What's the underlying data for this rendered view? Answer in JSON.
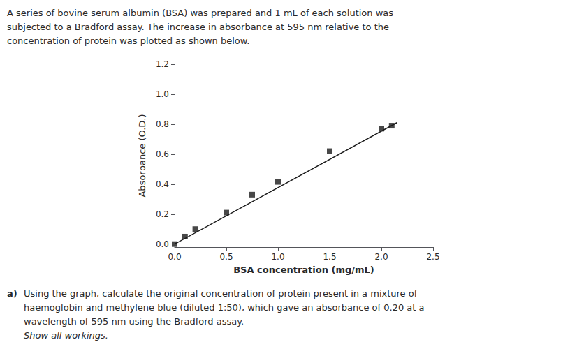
{
  "chart_data": {
    "type": "scatter",
    "annotations": [
      "A series of bovine serum albumin (BSA) was prepared and 1 mL of each solution was\nsubjected to a Bradford assay. The increase in absorbance at 595 nm relative to the\nconcentration of protein was plotted as shown below.",
      "a)",
      "Using the graph, calculate the original concentration of protein present in a mixture of\nhaemoglobin and methylene blue (diluted 1:50), which gave an absorbance of 0.20 at a\nwavelength of 595 nm using the Bradford assay.",
      "Show all workings."
    ],
    "xlabel": "BSA concentration (mg/mL)",
    "ylabel": "Absorbance (O.D.)",
    "series": [
      {
        "type": "scatter",
        "marker": "square",
        "color": "#1a1a1a",
        "x": [
          0.0,
          0.1,
          0.2,
          0.5,
          0.75,
          1.0,
          1.5,
          2.0,
          2.1
        ],
        "values": [
          0.0,
          0.05,
          0.1,
          0.21,
          0.33,
          0.415,
          0.62,
          0.77,
          0.79
        ]
      },
      {
        "type": "line",
        "color": "#1a1a1a",
        "x": [
          0.0,
          2.15
        ],
        "values": [
          0.0,
          0.81
        ]
      }
    ],
    "xlim": [
      0.0,
      2.5
    ],
    "ylim": [
      -0.02,
      1.2
    ],
    "xticks": [
      {
        "value": 0,
        "label": "0.0"
      },
      0.5,
      {
        "value": 1,
        "label": "1.0"
      },
      1.5,
      {
        "value": 2,
        "label": "2.0"
      },
      2.5
    ],
    "yticks": [
      {
        "value": 0,
        "label": "0.0"
      },
      0.2,
      0.4,
      0.6,
      0.8,
      {
        "value": 1,
        "label": "1.0"
      },
      1.2
    ],
    "grid": false
  }
}
